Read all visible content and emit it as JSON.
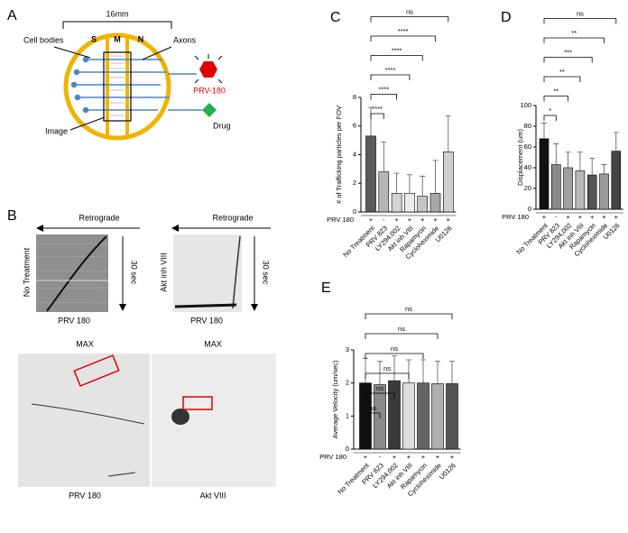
{
  "panel_labels": [
    "A",
    "B",
    "C",
    "D",
    "E"
  ],
  "panel_a": {
    "width_label": "16mm",
    "cell_bodies": "Cell bodies",
    "axons": "Axons",
    "compartments": [
      "S",
      "M",
      "N"
    ],
    "virus": "PRV-180",
    "image": "Image",
    "drug": "Drug"
  },
  "panel_b": {
    "direction": [
      "Retrograde",
      "Retrograde"
    ],
    "time": [
      "30 sec",
      "30 sec"
    ],
    "conditions": [
      "No Treatment",
      "Akt inh VIII"
    ],
    "kymo_captions": [
      "PRV 180",
      "PRV 180"
    ],
    "projection": [
      "MAX",
      "MAX"
    ],
    "image_captions": [
      "PRV 180",
      "Akt VIII"
    ]
  },
  "chart_data": [
    {
      "type": "bar",
      "y_label": "# of Trafficking particles per FOV",
      "categories": [
        "No Treatment",
        "PRV 823",
        "LY294,002",
        "Akt inh VIII",
        "Rapamycin",
        "Cycloheximide",
        "U0126"
      ],
      "values": [
        5.3,
        2.8,
        1.3,
        1.3,
        1.1,
        1.3,
        4.2
      ],
      "errors": [
        2.0,
        2.1,
        1.4,
        1.3,
        1.4,
        2.3,
        2.5
      ],
      "colors": [
        "#5a5a5a",
        "#b4b4b4",
        "#d4d4d4",
        "#ececec",
        "#c4c4c4",
        "#a8a8a8",
        "#cfcfcf"
      ],
      "ylim": [
        0,
        8
      ],
      "yticks": [
        0,
        2,
        4,
        6,
        8
      ],
      "group_label": "PRV 180",
      "signs": [
        "+",
        "-",
        "+",
        "+",
        "+",
        "+",
        "+"
      ],
      "comparisons": [
        "****",
        "****",
        "****",
        "****",
        "****",
        "ns"
      ]
    },
    {
      "type": "bar",
      "y_label": "Displacement (um)",
      "categories": [
        "No Treatment",
        "PRV 823",
        "LY294,002",
        "Akt inh VIII",
        "Rapamycin",
        "Cycloheximide",
        "U0126"
      ],
      "values": [
        68,
        43,
        40,
        37,
        33,
        34,
        56
      ],
      "errors": [
        15,
        20,
        15,
        18,
        16,
        9,
        18
      ],
      "colors": [
        "#111111",
        "#8a8a8a",
        "#a0a0a0",
        "#b8b8b8",
        "#555555",
        "#9a9a9a",
        "#444444"
      ],
      "ylim": [
        0,
        100
      ],
      "yticks": [
        0,
        20,
        40,
        60,
        80,
        100
      ],
      "group_label": "PRV 180",
      "signs": [
        "+",
        "-",
        "+",
        "+",
        "+",
        "+",
        "+"
      ],
      "comparisons": [
        "*",
        "**",
        "**",
        "***",
        "**",
        "ns"
      ]
    },
    {
      "type": "bar",
      "y_label": "Average Velocity (um/sec)",
      "categories": [
        "No Treatment",
        "PRV 823",
        "LY294,002",
        "Akt inh VIII",
        "Rapamycin",
        "Cycloheximide",
        "U0126"
      ],
      "values": [
        2.0,
        1.95,
        2.07,
        2.0,
        2.0,
        1.98,
        1.98
      ],
      "errors": [
        0.75,
        0.7,
        0.75,
        0.7,
        0.7,
        0.68,
        0.68
      ],
      "colors": [
        "#111111",
        "#8a8a8a",
        "#3a3a3a",
        "#dcdcdc",
        "#666666",
        "#b0b0b0",
        "#555555"
      ],
      "ylim": [
        0,
        3
      ],
      "yticks": [
        0,
        1,
        2,
        3
      ],
      "group_label": "PRV 180",
      "signs": [
        "+",
        "-",
        "+",
        "+",
        "+",
        "+",
        "+"
      ],
      "comparisons": [
        "ns",
        "ns",
        "ns",
        "ns",
        "ns",
        "ns"
      ]
    }
  ]
}
